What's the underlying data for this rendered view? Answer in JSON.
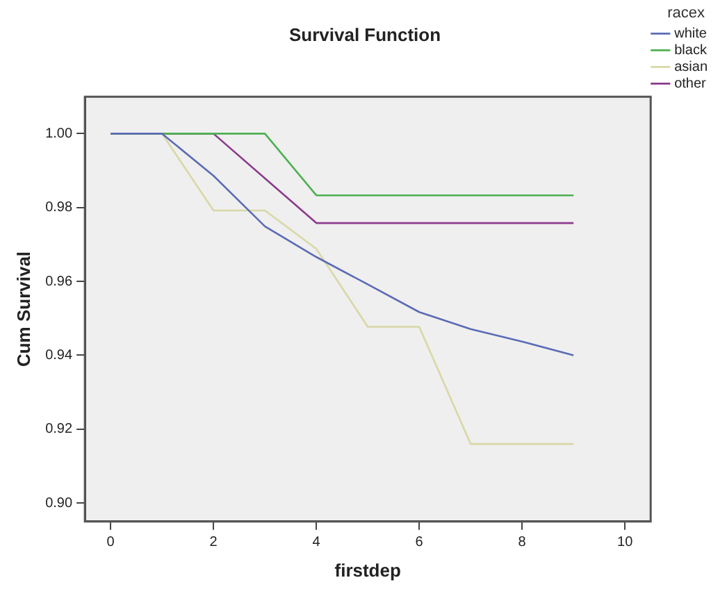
{
  "chart_data": {
    "type": "line",
    "title": "Survival Function",
    "xlabel": "firstdep",
    "ylabel": "Cum Survival",
    "legend_title": "racex",
    "legend": "top right",
    "grid": false,
    "marker": "none",
    "line_style": "solid",
    "xlim": [
      -0.5,
      10.5
    ],
    "xticks": [
      0,
      2,
      4,
      6,
      8,
      10
    ],
    "ylim": [
      0.895,
      1.01
    ],
    "yticks": [
      {
        "value": 0.9,
        "label": "0.90"
      },
      {
        "value": 0.92,
        "label": "0.92"
      },
      {
        "value": 0.94,
        "label": "0.94"
      },
      {
        "value": 0.96,
        "label": "0.96"
      },
      {
        "value": 0.98,
        "label": "0.98"
      },
      {
        "value": 1,
        "label": "1.00"
      }
    ],
    "series": [
      {
        "name": "white",
        "color": "#5b6bb5",
        "x": [
          0,
          1,
          2,
          3,
          4,
          5,
          6,
          7,
          8,
          9
        ],
        "values": [
          1,
          1,
          0.9886,
          0.9749,
          0.9666,
          0.9592,
          0.9517,
          0.9471,
          0.9437,
          0.94
        ]
      },
      {
        "name": "black",
        "color": "#4cb050",
        "x": [
          0,
          1,
          2,
          3,
          4,
          9
        ],
        "values": [
          1,
          1,
          1,
          1,
          0.9833,
          0.9833
        ]
      },
      {
        "name": "asian",
        "color": "#d8d8a6",
        "x": [
          0,
          1,
          2,
          3,
          4,
          5,
          6,
          7,
          9
        ],
        "values": [
          1,
          1,
          0.9792,
          0.9792,
          0.9688,
          0.9477,
          0.9477,
          0.916,
          0.916
        ]
      },
      {
        "name": "other",
        "color": "#8b3a8b",
        "x": [
          0,
          1,
          2,
          4,
          9
        ],
        "values": [
          1,
          1,
          1,
          0.9758,
          0.9758
        ]
      }
    ]
  }
}
